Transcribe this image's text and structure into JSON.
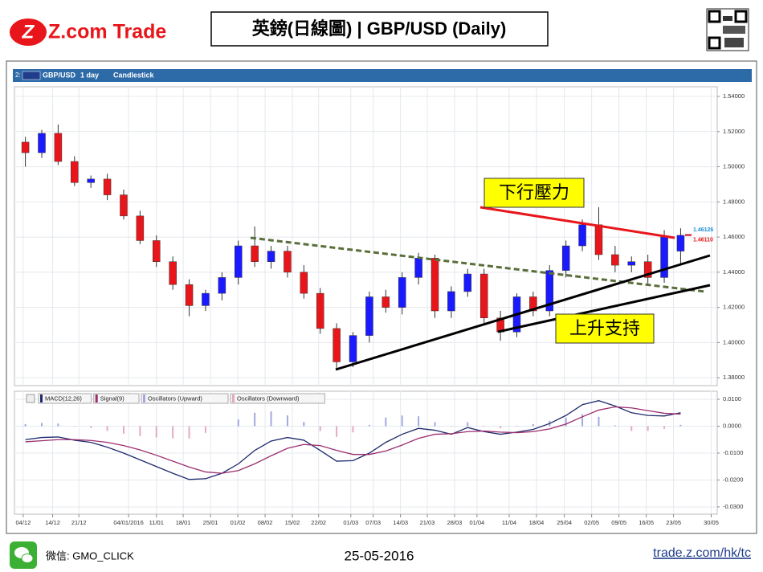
{
  "header": {
    "logo": "Z.com Trade",
    "title": "英鎊(日線圖) | GBP/USD (Daily)"
  },
  "toolbar": {
    "panel": "2:",
    "symbol": "GBP/USD",
    "interval": "1 day",
    "style": "Candlestick"
  },
  "chart_data": [
    {
      "type": "candlestick",
      "up_color": "#1a1aff",
      "down_color": "#e8161b",
      "grid": true,
      "x": [
        2,
        5,
        8,
        11,
        14,
        17,
        20,
        23,
        26,
        29,
        32,
        35,
        38,
        41,
        44,
        47,
        50,
        53,
        56,
        59,
        62,
        65,
        68,
        71,
        74,
        77,
        80,
        83,
        86,
        89,
        92,
        95,
        98,
        101,
        104,
        107,
        110,
        113,
        116,
        119,
        122
      ],
      "open": [
        1.514,
        1.508,
        1.519,
        1.503,
        1.491,
        1.493,
        1.484,
        1.472,
        1.458,
        1.446,
        1.433,
        1.421,
        1.428,
        1.437,
        1.455,
        1.446,
        1.452,
        1.44,
        1.428,
        1.408,
        1.389,
        1.404,
        1.426,
        1.42,
        1.437,
        1.448,
        1.418,
        1.429,
        1.439,
        1.414,
        1.406,
        1.426,
        1.418,
        1.441,
        1.455,
        1.467,
        1.45,
        1.444,
        1.446,
        1.437,
        1.452
      ],
      "high": [
        1.517,
        1.521,
        1.524,
        1.506,
        1.495,
        1.496,
        1.487,
        1.475,
        1.461,
        1.449,
        1.436,
        1.43,
        1.44,
        1.458,
        1.466,
        1.455,
        1.455,
        1.444,
        1.431,
        1.411,
        1.406,
        1.429,
        1.43,
        1.44,
        1.451,
        1.45,
        1.432,
        1.442,
        1.442,
        1.418,
        1.428,
        1.429,
        1.444,
        1.458,
        1.47,
        1.477,
        1.455,
        1.449,
        1.45,
        1.464,
        1.465
      ],
      "low": [
        1.5,
        1.505,
        1.501,
        1.489,
        1.488,
        1.481,
        1.47,
        1.456,
        1.443,
        1.43,
        1.415,
        1.418,
        1.424,
        1.433,
        1.443,
        1.442,
        1.437,
        1.425,
        1.405,
        1.385,
        1.386,
        1.4,
        1.417,
        1.416,
        1.433,
        1.414,
        1.414,
        1.426,
        1.411,
        1.401,
        1.403,
        1.415,
        1.415,
        1.437,
        1.452,
        1.447,
        1.44,
        1.44,
        1.433,
        1.434,
        1.445
      ],
      "close": [
        1.508,
        1.519,
        1.503,
        1.491,
        1.493,
        1.484,
        1.472,
        1.458,
        1.446,
        1.433,
        1.421,
        1.428,
        1.437,
        1.455,
        1.446,
        1.452,
        1.44,
        1.428,
        1.408,
        1.389,
        1.404,
        1.426,
        1.42,
        1.437,
        1.448,
        1.418,
        1.429,
        1.439,
        1.414,
        1.406,
        1.426,
        1.418,
        1.441,
        1.455,
        1.467,
        1.45,
        1.444,
        1.446,
        1.437,
        1.46,
        1.461
      ],
      "xlim": [
        0,
        128.7
      ],
      "ylim": [
        1.3755,
        1.5455
      ],
      "yticks": [
        {
          "value": 1.38,
          "label": "1.38000"
        },
        {
          "value": 1.4,
          "label": "1.40000"
        },
        {
          "value": 1.42,
          "label": "1.42000"
        },
        {
          "value": 1.44,
          "label": "1.44000"
        },
        {
          "value": 1.46,
          "label": "1.46000"
        },
        {
          "value": 1.48,
          "label": "1.48000"
        },
        {
          "value": 1.5,
          "label": "1.50000"
        },
        {
          "value": 1.52,
          "label": "1.52000"
        },
        {
          "value": 1.54,
          "label": "1.54000"
        }
      ],
      "last_prices": [
        {
          "value": 1.46126,
          "label": "1.46126",
          "color": "#1f8fd6"
        },
        {
          "value": 1.4611,
          "label": "1.46110",
          "color": "#e8161b"
        }
      ],
      "annotations": [
        "下行壓力",
        "上升支持"
      ]
    },
    {
      "type": "line",
      "grid": true,
      "x": [
        2,
        5,
        8,
        11,
        14,
        17,
        20,
        23,
        26,
        29,
        32,
        35,
        38,
        41,
        44,
        47,
        50,
        53,
        56,
        59,
        62,
        65,
        68,
        71,
        74,
        77,
        80,
        83,
        86,
        89,
        92,
        95,
        98,
        101,
        104,
        107,
        110,
        113,
        116,
        119,
        122
      ],
      "series": [
        {
          "name": "MACD(12,26)",
          "color": "#1f2a6b",
          "values": [
            -0.005,
            -0.0042,
            -0.004,
            -0.0052,
            -0.006,
            -0.0078,
            -0.01,
            -0.0125,
            -0.015,
            -0.0175,
            -0.0198,
            -0.0195,
            -0.0175,
            -0.014,
            -0.009,
            -0.0055,
            -0.0042,
            -0.0052,
            -0.009,
            -0.013,
            -0.0128,
            -0.01,
            -0.006,
            -0.003,
            -0.0008,
            -0.0015,
            -0.003,
            -0.0005,
            -0.002,
            -0.003,
            -0.0022,
            -0.0012,
            0.001,
            0.004,
            0.008,
            0.0095,
            0.0075,
            0.005,
            0.004,
            0.0038,
            0.005
          ]
        },
        {
          "name": "Signal(9)",
          "color": "#9b2d6e",
          "values": [
            -0.0058,
            -0.0054,
            -0.005,
            -0.005,
            -0.0053,
            -0.006,
            -0.0072,
            -0.0088,
            -0.0108,
            -0.013,
            -0.0152,
            -0.017,
            -0.0175,
            -0.0165,
            -0.014,
            -0.011,
            -0.0082,
            -0.0068,
            -0.0072,
            -0.009,
            -0.0105,
            -0.0105,
            -0.0092,
            -0.007,
            -0.0045,
            -0.003,
            -0.0028,
            -0.002,
            -0.0018,
            -0.0022,
            -0.0024,
            -0.002,
            -0.001,
            0.0008,
            0.0035,
            0.006,
            0.0072,
            0.0068,
            0.0058,
            0.0048,
            0.0045
          ]
        }
      ],
      "histogram": {
        "legend": [
          {
            "name": "Oscillators (Upward)",
            "color": "#a3a8e0"
          },
          {
            "name": "Oscillators (Downward)",
            "color": "#e6a9c0"
          }
        ],
        "values": [
          0.0008,
          0.0012,
          0.001,
          -0.0002,
          -0.0007,
          -0.0018,
          -0.0028,
          -0.0037,
          -0.0042,
          -0.0045,
          -0.0046,
          -0.0025,
          0,
          0.0025,
          0.005,
          0.0055,
          0.004,
          0.0016,
          -0.0018,
          -0.004,
          -0.0023,
          0.0005,
          0.0032,
          0.004,
          0.0037,
          0.0015,
          -0.0002,
          0.0015,
          -0.0002,
          -0.0008,
          0.0002,
          0.0008,
          0.002,
          0.0032,
          0.0045,
          0.0035,
          0.0003,
          -0.0018,
          -0.0018,
          -0.001,
          0.0005
        ]
      },
      "xlim": [
        0,
        128.7
      ],
      "ylim": [
        -0.0327,
        0.013
      ],
      "yticks": [
        {
          "value": -0.03,
          "label": "-0.0300"
        },
        {
          "value": -0.02,
          "label": "-0.0200"
        },
        {
          "value": -0.01,
          "label": "-0.0100"
        },
        {
          "value": 0,
          "label": "0.0000"
        },
        {
          "value": 0.01,
          "label": "0.0100"
        }
      ],
      "xticks": [
        {
          "value": 1.6,
          "label": "04/12"
        },
        {
          "value": 7,
          "label": "14/12"
        },
        {
          "value": 11.8,
          "label": "21/12"
        },
        {
          "value": 20.9,
          "label": "04/01/2016"
        },
        {
          "value": 26,
          "label": "11/01"
        },
        {
          "value": 30.9,
          "label": "18/01"
        },
        {
          "value": 35.9,
          "label": "25/01"
        },
        {
          "value": 40.9,
          "label": "01/02"
        },
        {
          "value": 45.9,
          "label": "08/02"
        },
        {
          "value": 50.9,
          "label": "15/02"
        },
        {
          "value": 55.7,
          "label": "22/02"
        },
        {
          "value": 61.6,
          "label": "01/03"
        },
        {
          "value": 65.7,
          "label": "07/03"
        },
        {
          "value": 70.7,
          "label": "14/03"
        },
        {
          "value": 75.6,
          "label": "21/03"
        },
        {
          "value": 80.6,
          "label": "28/03"
        },
        {
          "value": 84.7,
          "label": "01/04"
        },
        {
          "value": 90.6,
          "label": "11/04"
        },
        {
          "value": 95.6,
          "label": "18/04"
        },
        {
          "value": 100.7,
          "label": "25/04"
        },
        {
          "value": 105.7,
          "label": "02/05"
        },
        {
          "value": 110.7,
          "label": "09/05"
        },
        {
          "value": 115.7,
          "label": "16/05"
        },
        {
          "value": 120.7,
          "label": "23/05"
        },
        {
          "value": 127.6,
          "label": "30/05"
        }
      ]
    }
  ],
  "footer": {
    "wechat": "微信: GMO_CLICK",
    "date": "25-05-2016",
    "url": "trade.z.com/hk/tc"
  }
}
